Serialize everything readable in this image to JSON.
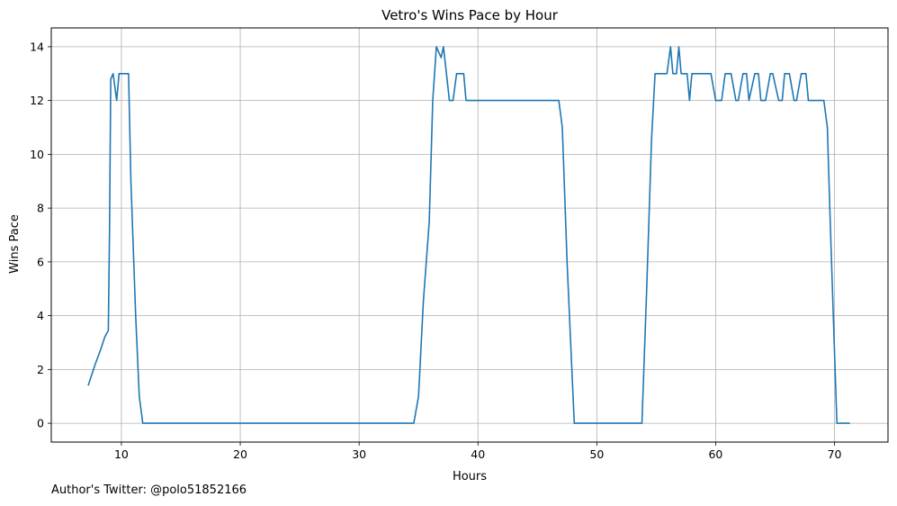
{
  "footnote": "Author's Twitter: @polo51852166",
  "chart_data": {
    "type": "line",
    "title": "Vetro's Wins Pace by Hour",
    "xlabel": "Hours",
    "ylabel": "Wins Pace",
    "xlim": [
      4.1,
      74.5
    ],
    "ylim": [
      -0.7,
      14.7
    ],
    "xticks": [
      10,
      20,
      30,
      40,
      50,
      60,
      70
    ],
    "yticks": [
      0,
      2,
      4,
      6,
      8,
      10,
      12,
      14
    ],
    "grid": true,
    "color": "#1f77b4",
    "series": [
      {
        "x": [
          7.2,
          7.8,
          8.3,
          8.6,
          8.9,
          9.0,
          9.1,
          9.3,
          9.6,
          9.8,
          10.2,
          10.6,
          10.8,
          11.2,
          11.5,
          11.8,
          12.0,
          20,
          30,
          34.6,
          35.0,
          35.4,
          35.9,
          36.2,
          36.5,
          36.9,
          37.1,
          37.6,
          37.9,
          38.2,
          38.6,
          38.8,
          39.0,
          40,
          46.8,
          47.1,
          47.5,
          47.9,
          48.1,
          50,
          53.8,
          54.2,
          54.6,
          54.9,
          55.2,
          55.9,
          56.2,
          56.4,
          56.7,
          56.9,
          57.1,
          57.6,
          57.8,
          58.0,
          58.5,
          59.0,
          59.6,
          60.0,
          60.5,
          60.8,
          61.3,
          61.7,
          61.9,
          62.3,
          62.6,
          62.8,
          63.3,
          63.6,
          63.8,
          64.2,
          64.6,
          64.8,
          65.3,
          65.6,
          65.8,
          66.2,
          66.6,
          66.8,
          67.2,
          67.6,
          67.8,
          68.2,
          68.6,
          69.1,
          69.4,
          69.6,
          69.9,
          70.2,
          70.6,
          70.9,
          71.3
        ],
        "values": [
          1.4,
          2.2,
          2.8,
          3.2,
          3.45,
          7.0,
          12.8,
          13.0,
          12.0,
          13.0,
          13.0,
          13.0,
          9.0,
          4.0,
          1.0,
          0.0,
          0.0,
          0.0,
          0.0,
          0.0,
          1.0,
          4.5,
          7.5,
          12.0,
          14.0,
          13.6,
          14.0,
          12.0,
          12.0,
          13.0,
          13.0,
          13.0,
          12.0,
          12.0,
          12.0,
          11.0,
          6.0,
          2.0,
          0.0,
          0.0,
          0.0,
          5.0,
          10.5,
          13.0,
          13.0,
          13.0,
          14.0,
          13.0,
          13.0,
          14.0,
          13.0,
          13.0,
          12.0,
          13.0,
          13.0,
          13.0,
          13.0,
          12.0,
          12.0,
          13.0,
          13.0,
          12.0,
          12.0,
          13.0,
          13.0,
          12.0,
          13.0,
          13.0,
          12.0,
          12.0,
          13.0,
          13.0,
          12.0,
          12.0,
          13.0,
          13.0,
          12.0,
          12.0,
          13.0,
          13.0,
          12.0,
          12.0,
          12.0,
          12.0,
          11.0,
          8.0,
          4.0,
          0.0,
          0.0,
          0.0,
          0.0
        ]
      }
    ]
  }
}
